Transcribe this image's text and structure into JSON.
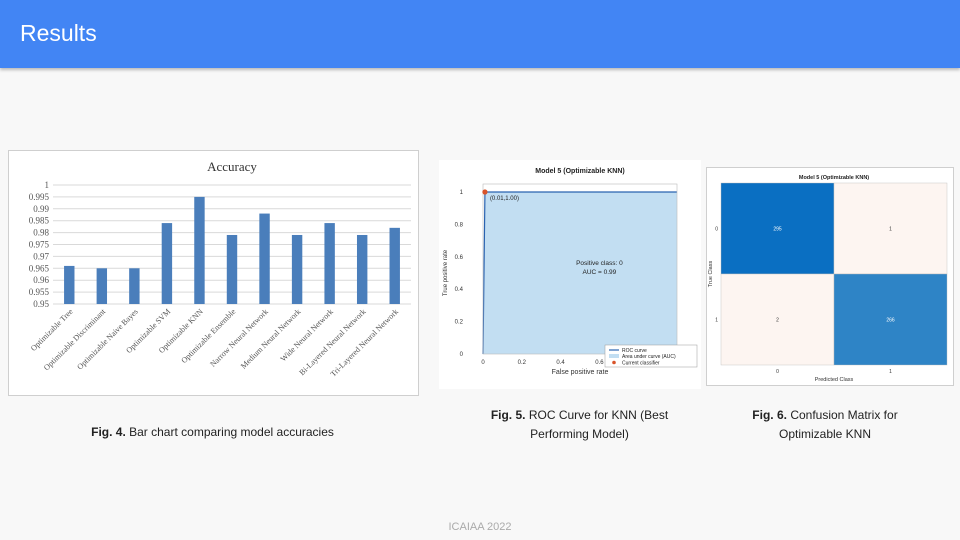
{
  "slide": {
    "title": "Results",
    "footer": "ICAIAA 2022"
  },
  "captions": {
    "fig4": {
      "label": "Fig. 4.",
      "text": "Bar chart comparing model accuracies"
    },
    "fig5": {
      "label": "Fig. 5.",
      "text_line1": "ROC Curve for KNN (Best",
      "text_line2": "Performing Model)"
    },
    "fig6": {
      "label": "Fig. 6.",
      "text_line1": "Confusion Matrix for",
      "text_line2": "Optimizable KNN"
    }
  },
  "chart_data": [
    {
      "type": "bar",
      "title": "Accuracy",
      "categories": [
        "Optimizable Tree",
        "Optimizable Discriminant",
        "Optimizable Naive Bayes",
        "Optimizable SVM",
        "Optimizable KNN",
        "Optimizable Ensemble",
        "Narrow Neural Network",
        "Medium Neural Network",
        "Wide Neural Network",
        "Bi-Layered Neural Network",
        "Tri-Layered Neural Network"
      ],
      "values": [
        0.966,
        0.965,
        0.965,
        0.984,
        0.995,
        0.979,
        0.988,
        0.979,
        0.984,
        0.979,
        0.982
      ],
      "ylim": [
        0.95,
        1.0
      ],
      "yticks": [
        "0.95",
        "0.955",
        "0.96",
        "0.965",
        "0.97",
        "0.975",
        "0.98",
        "0.985",
        "0.99",
        "0.995",
        "1"
      ],
      "grid": true,
      "color": "#4a7ebb"
    },
    {
      "type": "area",
      "title": "Model 5 (Optimizable KNN)",
      "xlabel": "False positive rate",
      "ylabel": "True positive rate",
      "xlim": [
        0,
        1
      ],
      "ylim": [
        0,
        1
      ],
      "xticks": [
        "0",
        "0.2",
        "0.4",
        "0.6",
        "0.8",
        "1"
      ],
      "yticks": [
        "0",
        "0.2",
        "0.4",
        "0.6",
        "0.8",
        "1"
      ],
      "curve": {
        "x": [
          0,
          0.01,
          1
        ],
        "y": [
          0,
          1.0,
          1.0
        ]
      },
      "point": {
        "x": 0.01,
        "y": 1.0,
        "label": "(0.01,1.00)"
      },
      "annotation_line1": "Positive class: 0",
      "annotation_line2": "AUC = 0.99",
      "legend": [
        "ROC curve",
        "Area under curve (AUC)",
        "Current classifier"
      ],
      "legend_position": "bottom-right",
      "colors": {
        "curve": "#2a63b0",
        "area": "#c2def2",
        "point": "#d9542a"
      }
    },
    {
      "type": "heatmap",
      "title": "Model 5 (Optimizable KNN)",
      "xlabel": "Predicted Class",
      "ylabel": "True Class",
      "classes": [
        "0",
        "1"
      ],
      "matrix": [
        [
          295,
          1
        ],
        [
          2,
          266
        ]
      ],
      "colors": {
        "high": "#0a6fc2",
        "high2": "#2e84c6",
        "low": "#fdf5f1"
      }
    }
  ]
}
